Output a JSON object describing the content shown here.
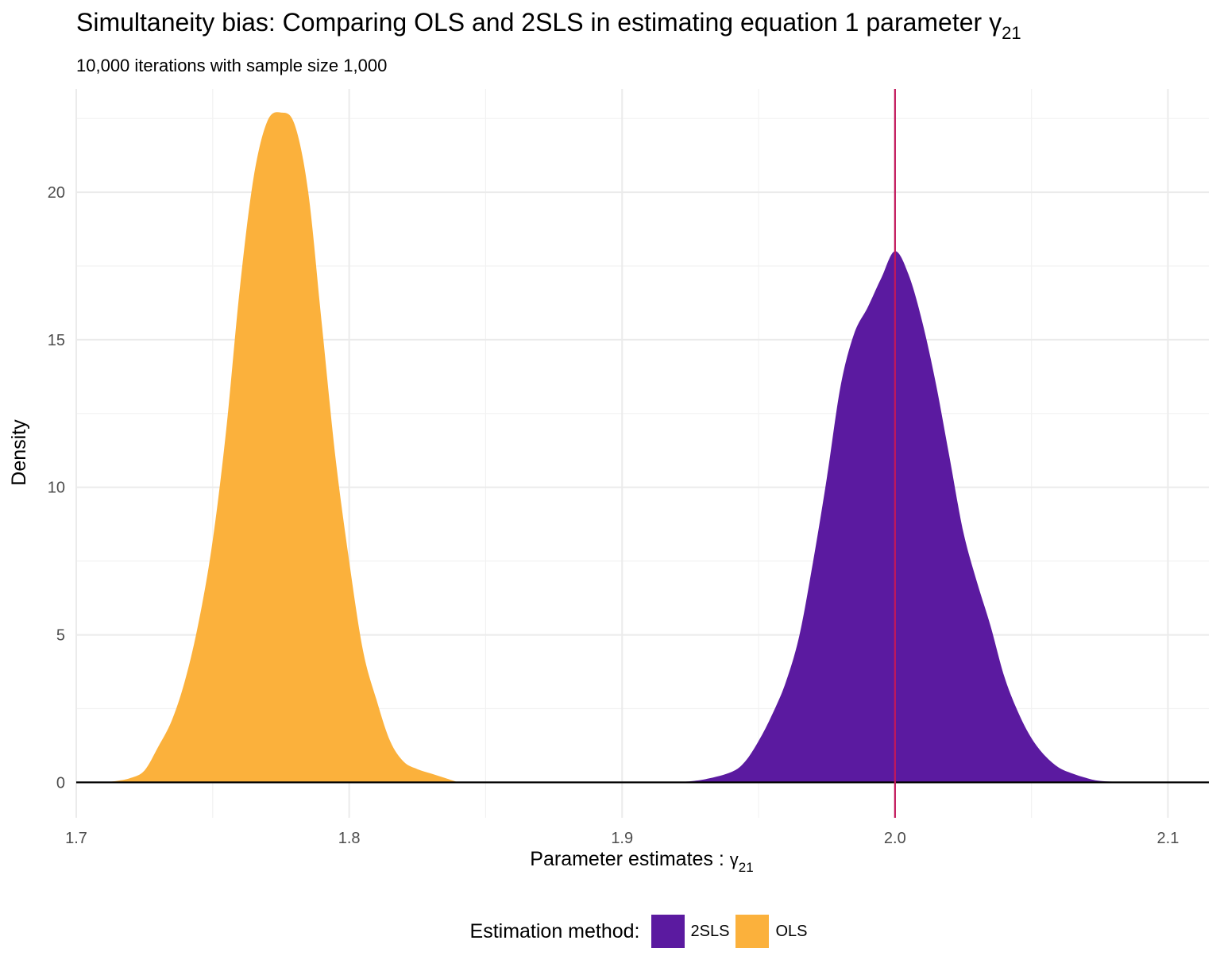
{
  "chart_data": {
    "type": "area",
    "title": "Simultaneity bias: Comparing OLS and 2SLS in estimating equation 1 parameter",
    "title_symbol": "γ",
    "title_subscript": "21",
    "subtitle": "10,000 iterations with sample size 1,000",
    "xlabel": "Parameter estimates :",
    "xlabel_symbol": "γ",
    "xlabel_subscript": "21",
    "ylabel": "Density",
    "xlim": [
      1.7,
      2.115
    ],
    "ylim": [
      -1.2,
      23.5
    ],
    "xticks": [
      1.7,
      1.8,
      1.9,
      2.0,
      2.1
    ],
    "xtick_labels": [
      "1.7",
      "1.8",
      "1.9",
      "2.0",
      "2.1"
    ],
    "yticks": [
      0,
      5,
      10,
      15,
      20
    ],
    "ytick_labels": [
      "0",
      "5",
      "10",
      "15",
      "20"
    ],
    "grid": true,
    "baseline": 0,
    "vline": {
      "x": 2.0,
      "color": "#c2185b"
    },
    "legend": {
      "title": "Estimation method:",
      "position": "bottom"
    },
    "series": [
      {
        "name": "OLS",
        "color": "#fbb13c",
        "points": [
          [
            1.71,
            0
          ],
          [
            1.715,
            0.05
          ],
          [
            1.72,
            0.15
          ],
          [
            1.725,
            0.4
          ],
          [
            1.73,
            1.2
          ],
          [
            1.735,
            2.1
          ],
          [
            1.74,
            3.5
          ],
          [
            1.745,
            5.5
          ],
          [
            1.75,
            8.2
          ],
          [
            1.755,
            12
          ],
          [
            1.76,
            16.8
          ],
          [
            1.765,
            20.5
          ],
          [
            1.77,
            22.4
          ],
          [
            1.775,
            22.7
          ],
          [
            1.78,
            22.3
          ],
          [
            1.785,
            20
          ],
          [
            1.79,
            15.5
          ],
          [
            1.795,
            11
          ],
          [
            1.8,
            7.5
          ],
          [
            1.805,
            4.5
          ],
          [
            1.81,
            2.8
          ],
          [
            1.815,
            1.4
          ],
          [
            1.82,
            0.7
          ],
          [
            1.825,
            0.45
          ],
          [
            1.83,
            0.3
          ],
          [
            1.835,
            0.15
          ],
          [
            1.84,
            0
          ]
        ]
      },
      {
        "name": "2SLS",
        "color": "#5b1aa0",
        "points": [
          [
            1.92,
            0
          ],
          [
            1.93,
            0.1
          ],
          [
            1.94,
            0.35
          ],
          [
            1.945,
            0.7
          ],
          [
            1.95,
            1.4
          ],
          [
            1.955,
            2.3
          ],
          [
            1.96,
            3.4
          ],
          [
            1.965,
            5
          ],
          [
            1.97,
            7.5
          ],
          [
            1.975,
            10.3
          ],
          [
            1.98,
            13.4
          ],
          [
            1.985,
            15.2
          ],
          [
            1.99,
            16.1
          ],
          [
            1.995,
            17.1
          ],
          [
            2.0,
            18
          ],
          [
            2.005,
            17.2
          ],
          [
            2.01,
            15.6
          ],
          [
            2.015,
            13.5
          ],
          [
            2.02,
            11
          ],
          [
            2.025,
            8.5
          ],
          [
            2.03,
            6.8
          ],
          [
            2.035,
            5.3
          ],
          [
            2.04,
            3.6
          ],
          [
            2.045,
            2.4
          ],
          [
            2.05,
            1.5
          ],
          [
            2.055,
            0.9
          ],
          [
            2.06,
            0.5
          ],
          [
            2.065,
            0.3
          ],
          [
            2.07,
            0.15
          ],
          [
            2.075,
            0.05
          ],
          [
            2.085,
            0
          ]
        ]
      }
    ]
  }
}
